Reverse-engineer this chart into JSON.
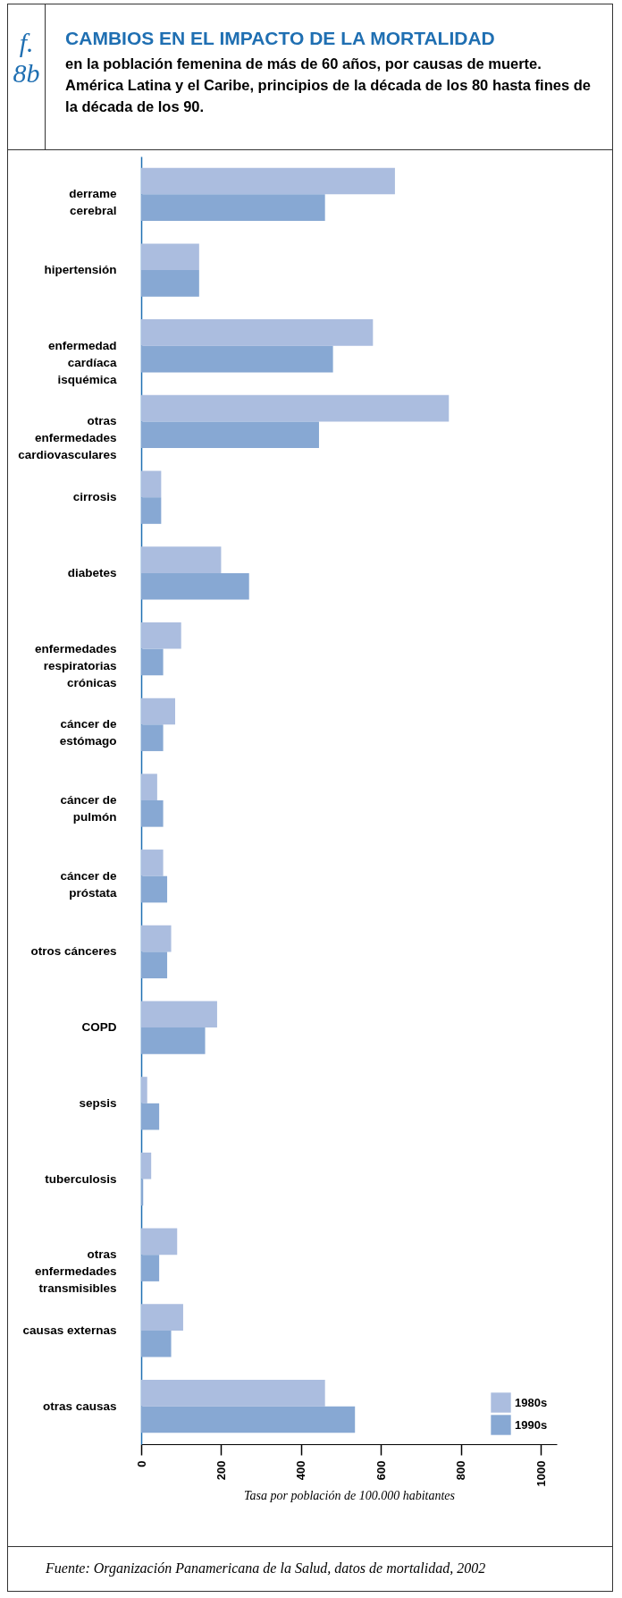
{
  "chart_data": {
    "type": "bar",
    "orientation": "horizontal",
    "title": "CAMBIOS EN EL IMPACTO DE LA MORTALIDAD",
    "subtitle": "en la población femenina de más de 60 años, por causas de muerte. América Latina y el Caribe, principios de la década de los 80 hasta fines de la década de los 90.",
    "xlabel": "Tasa por población de 100.000 habitantes",
    "annotations": [
      "f. 8b",
      "Fuente: Organización Panamericana de la Salud, datos de mortalidad, 2002"
    ],
    "categories": [
      "derrame cerebral",
      "hipertensión",
      "enfermedad cardíaca isquémica",
      "otras enfermedades cardiovasculares",
      "cirrosis",
      "diabetes",
      "enfermedades respiratorias crónicas",
      "cáncer de estómago",
      "cáncer de pulmón",
      "cáncer de próstata",
      "otros cánceres",
      "COPD",
      "sepsis",
      "tuberculosis",
      "otras enfermedades transmisibles",
      "causas externas",
      "otras causas"
    ],
    "series": [
      {
        "name": "1980s",
        "color": "#abbddf",
        "values": [
          635,
          145,
          580,
          770,
          50,
          200,
          100,
          85,
          40,
          55,
          75,
          190,
          15,
          25,
          90,
          105,
          460
        ]
      },
      {
        "name": "1990s",
        "color": "#87a8d3",
        "values": [
          460,
          145,
          480,
          445,
          50,
          270,
          55,
          55,
          55,
          65,
          65,
          160,
          45,
          5,
          45,
          75,
          535
        ]
      }
    ],
    "xlim": [
      0,
      1040
    ],
    "xticks": [
      0,
      200,
      400,
      600,
      800,
      1000
    ],
    "legend": "bottom right",
    "grid": false
  }
}
